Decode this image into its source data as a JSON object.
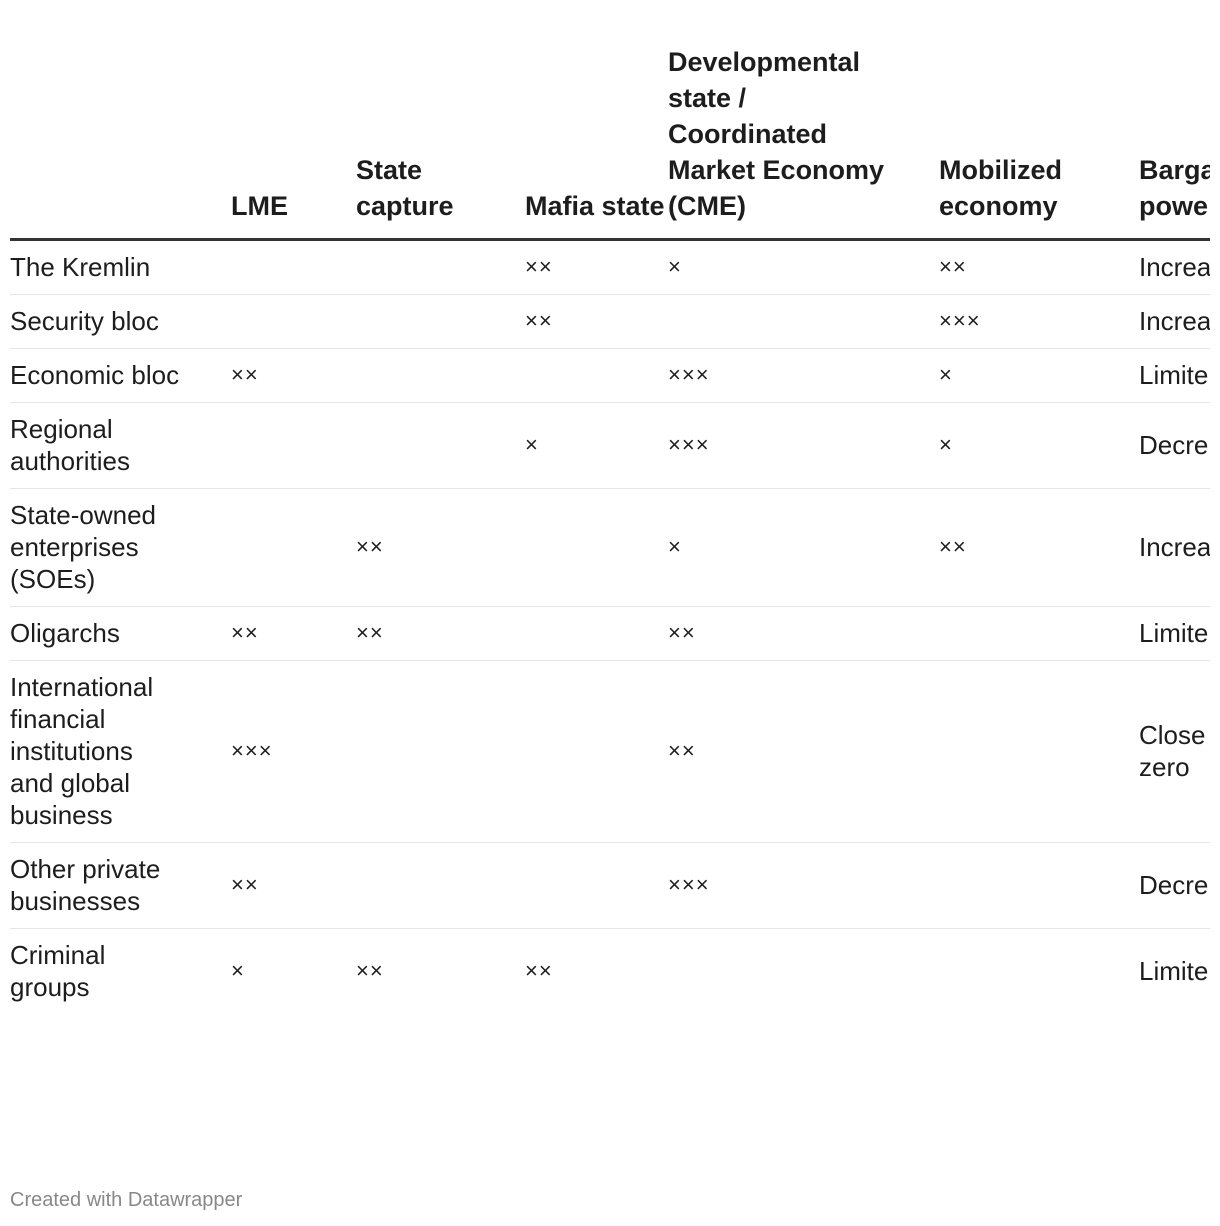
{
  "chart_data": {
    "type": "table",
    "columns": [
      "",
      "LME",
      "State capture",
      "Mafia state",
      "Developmental state / Coordinated Market Economy (CME)",
      "Mobilized economy",
      "Barga\npowe"
    ],
    "rows": [
      [
        "The Kremlin",
        "",
        "",
        "××",
        "×",
        "××",
        "Increa"
      ],
      [
        "Security bloc",
        "",
        "",
        "××",
        "",
        "×××",
        "Increa"
      ],
      [
        "Economic bloc",
        "××",
        "",
        "",
        "×××",
        "×",
        "Limite"
      ],
      [
        "Regional authorities",
        "",
        "",
        "×",
        "×××",
        "×",
        "Decre"
      ],
      [
        "State-owned enterprises (SOEs)",
        "",
        "××",
        "",
        "×",
        "××",
        "Increa"
      ],
      [
        "Oligarchs",
        "××",
        "××",
        "",
        "××",
        "",
        "Limite"
      ],
      [
        "International financial institutions and global business",
        "×××",
        "",
        "",
        "××",
        "",
        "Close zero"
      ],
      [
        "Other private businesses",
        "××",
        "",
        "",
        "×××",
        "",
        "Decre"
      ],
      [
        "Criminal groups",
        "×",
        "××",
        "××",
        "",
        "",
        "Limite"
      ]
    ]
  },
  "footer": "Created with Datawrapper"
}
